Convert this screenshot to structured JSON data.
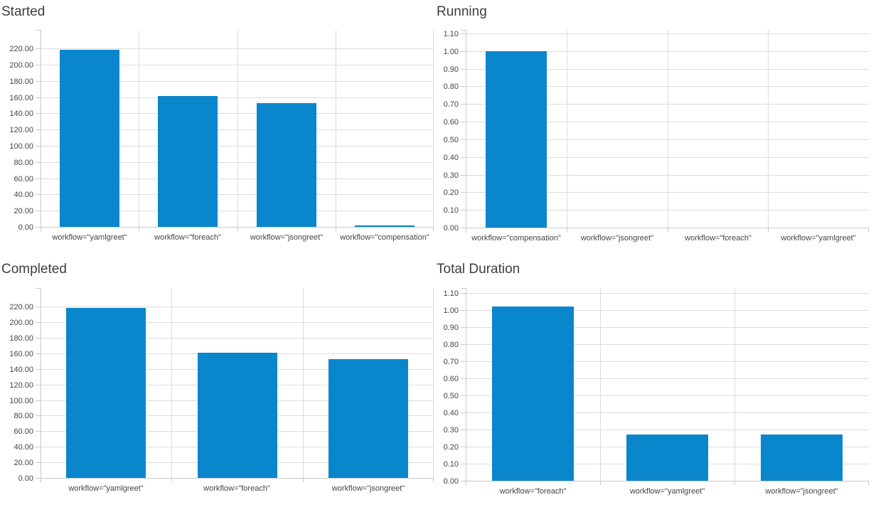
{
  "page": {
    "background": "#ffffff"
  },
  "colors": {
    "bar": "#0a86cc",
    "gridline": "#dcdcdc",
    "axis": "#c9c9c9",
    "title_text": "#3e3e3e",
    "tick_text": "#454545"
  },
  "chart_data": [
    {
      "id": "started",
      "type": "bar",
      "title": "Started",
      "categories": [
        "workflow=\"yamlgreet\"",
        "workflow=\"foreach\"",
        "workflow=\"jsongreet\"",
        "workflow=\"compensation\""
      ],
      "values": [
        218,
        161,
        153,
        2
      ],
      "xlabel": "",
      "ylabel": "",
      "ylim": [
        0,
        243
      ],
      "grid": true,
      "legend": "none",
      "y_ticks": {
        "min": 0,
        "max": 220,
        "step": 20,
        "labels": [
          "0.00",
          "20.00",
          "40.00",
          "60.00",
          "80.00",
          "100.00",
          "120.00",
          "140.00",
          "160.00",
          "180.00",
          "200.00",
          "220.00"
        ]
      }
    },
    {
      "id": "running",
      "type": "bar",
      "title": "Running",
      "categories": [
        "workflow=\"compensation\"",
        "workflow=\"jsongreet\"",
        "workflow=\"foreach\"",
        "workflow=\"yamlgreet\""
      ],
      "values": [
        1.0,
        0,
        0,
        0
      ],
      "xlabel": "",
      "ylabel": "",
      "ylim": [
        0,
        1.12
      ],
      "grid": true,
      "legend": "none",
      "y_ticks": {
        "min": 0,
        "max": 1.1,
        "step": 0.1,
        "labels": [
          "0.00",
          "0.10",
          "0.20",
          "0.30",
          "0.40",
          "0.50",
          "0.60",
          "0.70",
          "0.80",
          "0.90",
          "1.00",
          "1.10"
        ]
      }
    },
    {
      "id": "completed",
      "type": "bar",
      "title": "Completed",
      "categories": [
        "workflow=\"yamlgreet\"",
        "workflow=\"foreach\"",
        "workflow=\"jsongreet\""
      ],
      "values": [
        218,
        161,
        153
      ],
      "xlabel": "",
      "ylabel": "",
      "ylim": [
        0,
        244
      ],
      "grid": true,
      "legend": "none",
      "y_ticks": {
        "min": 0,
        "max": 220,
        "step": 20,
        "labels": [
          "0.00",
          "20.00",
          "40.00",
          "60.00",
          "80.00",
          "100.00",
          "120.00",
          "140.00",
          "160.00",
          "180.00",
          "200.00",
          "220.00"
        ]
      }
    },
    {
      "id": "total-duration",
      "type": "bar",
      "title": "Total Duration",
      "categories": [
        "workflow=\"foreach\"",
        "workflow=\"yamlgreet\"",
        "workflow=\"jsongreet\""
      ],
      "values": [
        1.02,
        0.27,
        0.27
      ],
      "xlabel": "",
      "ylabel": "",
      "ylim": [
        0,
        1.13
      ],
      "grid": true,
      "legend": "none",
      "y_ticks": {
        "min": 0,
        "max": 1.1,
        "step": 0.1,
        "labels": [
          "0.00",
          "0.10",
          "0.20",
          "0.30",
          "0.40",
          "0.50",
          "0.60",
          "0.70",
          "0.80",
          "0.90",
          "1.00",
          "1.10"
        ]
      }
    }
  ]
}
